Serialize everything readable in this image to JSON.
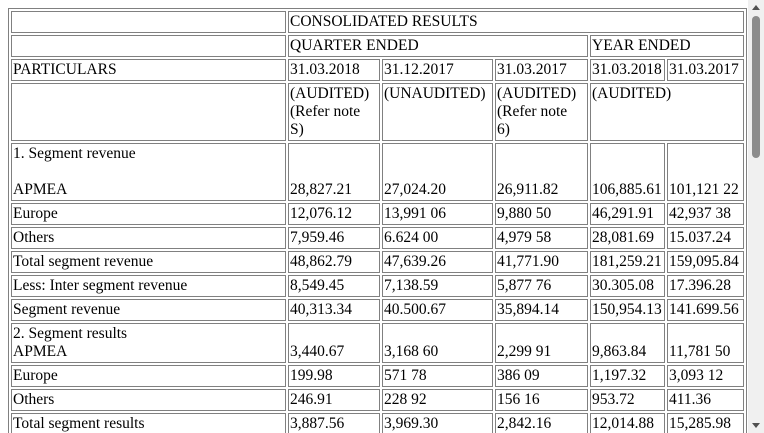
{
  "header": {
    "consolidated": "CONSOLIDATED RESULTS",
    "quarter_ended": "QUARTER ENDED",
    "year_ended": "YEAR ENDED",
    "particulars": "PARTICULARS",
    "dates": [
      "31.03.2018",
      "31.12.2017",
      "31.03.2017",
      "31.03.2018",
      "31.03.2017"
    ],
    "audit": {
      "q1_line1": "(AUDITED)",
      "q1_line2": "(Refer note",
      "q1_line3": "S)",
      "q2": "(UNAUDITED)",
      "q3_line1": "(AUDITED)",
      "q3_line2": "(Refer note",
      "q3_line3": "6)",
      "year": "(AUDITED)"
    }
  },
  "rows": [
    {
      "label_top": "1. Segment revenue",
      "label": "APMEA",
      "values": [
        "28,827.21",
        "27,024.20",
        "26,911.82",
        "106,885.61",
        "101,121 22"
      ]
    },
    {
      "label": "Europe",
      "values": [
        "12,076.12",
        "13,991 06",
        "9,880 50",
        "46,291.91",
        "42,937 38"
      ]
    },
    {
      "label": "Others",
      "values": [
        "7,959.46",
        "6.624 00",
        "4,979 58",
        "28,081.69",
        "15.037.24"
      ]
    },
    {
      "label": "Total segment revenue",
      "values": [
        "48,862.79",
        "47,639.26",
        "41,771.90",
        "181,259.21",
        "159,095.84"
      ]
    },
    {
      "label": "Less: Inter segment revenue",
      "values": [
        "8,549.45",
        "7,138.59",
        "5,877 76",
        "30.305.08",
        "17.396.28"
      ]
    },
    {
      "label": "Segment revenue",
      "values": [
        "40,313.34",
        "40.500.67",
        "35,894.14",
        "150,954.13",
        "141.699.56"
      ]
    },
    {
      "label_top": "2. Segment results",
      "label": "APMEA",
      "values": [
        "3,440.67",
        "3,168 60",
        "2,299 91",
        "9,863.84",
        "11,781 50"
      ]
    },
    {
      "label": "Europe",
      "values": [
        "199.98",
        "571 78",
        "386 09",
        "1,197.32",
        "3,093 12"
      ]
    },
    {
      "label": "Others",
      "values": [
        "246.91",
        "228 92",
        "156 16",
        "953.72",
        "411.36"
      ]
    },
    {
      "label": "Total segment results",
      "values": [
        "3,887.56",
        "3,969.30",
        "2,842.16",
        "12,014.88",
        "15,285.98"
      ]
    }
  ]
}
